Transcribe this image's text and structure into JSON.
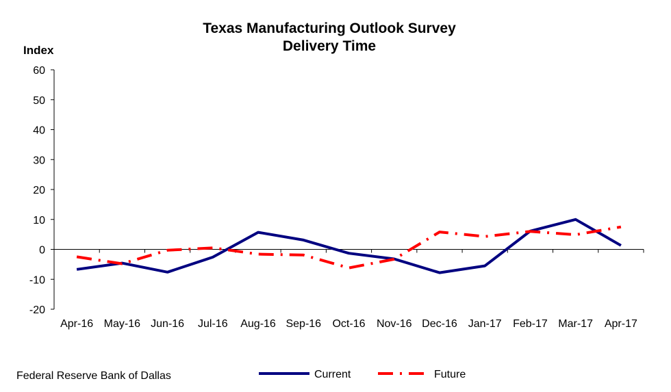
{
  "chart_data": {
    "type": "line",
    "title": "Texas Manufacturing Outlook Survey",
    "subtitle": "Delivery Time",
    "ylabel": "Index",
    "xlabel": "",
    "categories": [
      "Apr-16",
      "May-16",
      "Jun-16",
      "Jul-16",
      "Aug-16",
      "Sep-16",
      "Oct-16",
      "Nov-16",
      "Dec-16",
      "Jan-17",
      "Feb-17",
      "Mar-17",
      "Apr-17"
    ],
    "ylim": [
      -20,
      60
    ],
    "yticks": [
      "-20",
      "-10",
      "0",
      "10",
      "20",
      "30",
      "40",
      "50",
      "60"
    ],
    "grid": false,
    "legend_position": "bottom",
    "series": [
      {
        "name": "Current",
        "color": "#000080",
        "style": "solid",
        "values": [
          -6.7,
          -4.6,
          -7.6,
          -2.6,
          5.7,
          3.1,
          -1.3,
          -3.2,
          -7.8,
          -5.5,
          6.1,
          10.0,
          1.3
        ]
      },
      {
        "name": "Future",
        "color": "#ff0000",
        "style": "dash-dot",
        "values": [
          -2.5,
          -4.8,
          -0.3,
          0.5,
          -1.6,
          -1.9,
          -6.2,
          -3.3,
          5.8,
          4.3,
          6.0,
          4.9,
          7.5
        ]
      }
    ]
  },
  "source": "Federal Reserve Bank of Dallas"
}
